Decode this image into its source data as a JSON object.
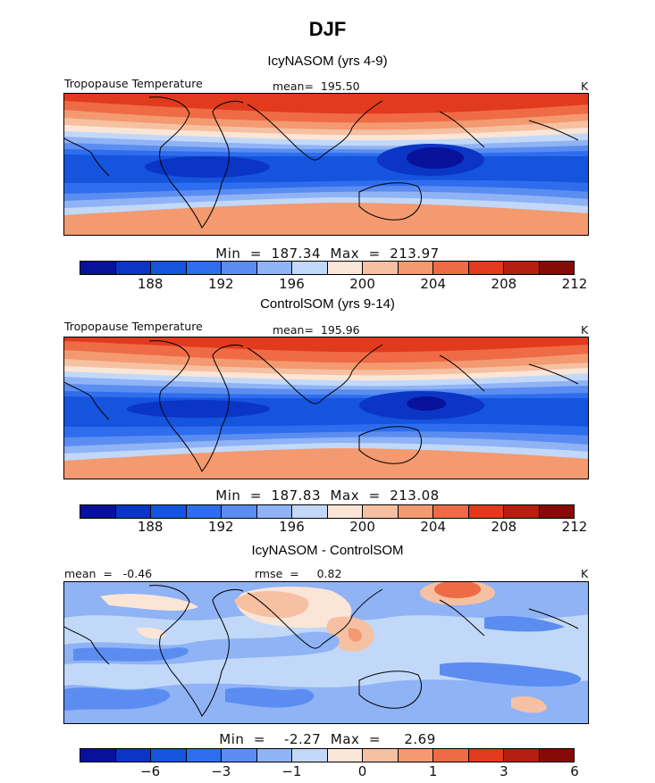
{
  "title": "DJF",
  "colorbar_colors": [
    "#08119a",
    "#0b35c4",
    "#1554dd",
    "#2e6eee",
    "#5b8df1",
    "#8fb3f5",
    "#c2d8f8",
    "#fbe5d6",
    "#f6c0a3",
    "#f39a70",
    "#ef6b45",
    "#e13a1c",
    "#b51f10",
    "#860a07"
  ],
  "panels": [
    {
      "subtitle": "IcyNASOM (yrs 4-9)",
      "label_left": "Tropopause Temperature",
      "label_mid": "mean=  195.50",
      "label_right": "K",
      "stats": "Min  =  187.34  Max  =  213.97",
      "ticks": [
        "188",
        "192",
        "196",
        "200",
        "204",
        "208",
        "212"
      ],
      "field_type": "absolute"
    },
    {
      "subtitle": "ControlSOM (yrs 9-14)",
      "label_left": "Tropopause Temperature",
      "label_mid": "mean=  195.96",
      "label_right": "K",
      "stats": "Min  =  187.83  Max  =  213.08",
      "ticks": [
        "188",
        "192",
        "196",
        "200",
        "204",
        "208",
        "212"
      ],
      "field_type": "absolute"
    },
    {
      "subtitle": "IcyNASOM - ControlSOM",
      "label_left": "mean  =   -0.46",
      "label_mid": "rmse  =     0.82",
      "label_right": "K",
      "stats": "Min  =    -2.27  Max  =     2.69",
      "ticks": [
        "−6",
        "−3",
        "−1",
        "0",
        "1",
        "3",
        "6"
      ],
      "field_type": "difference"
    }
  ]
}
